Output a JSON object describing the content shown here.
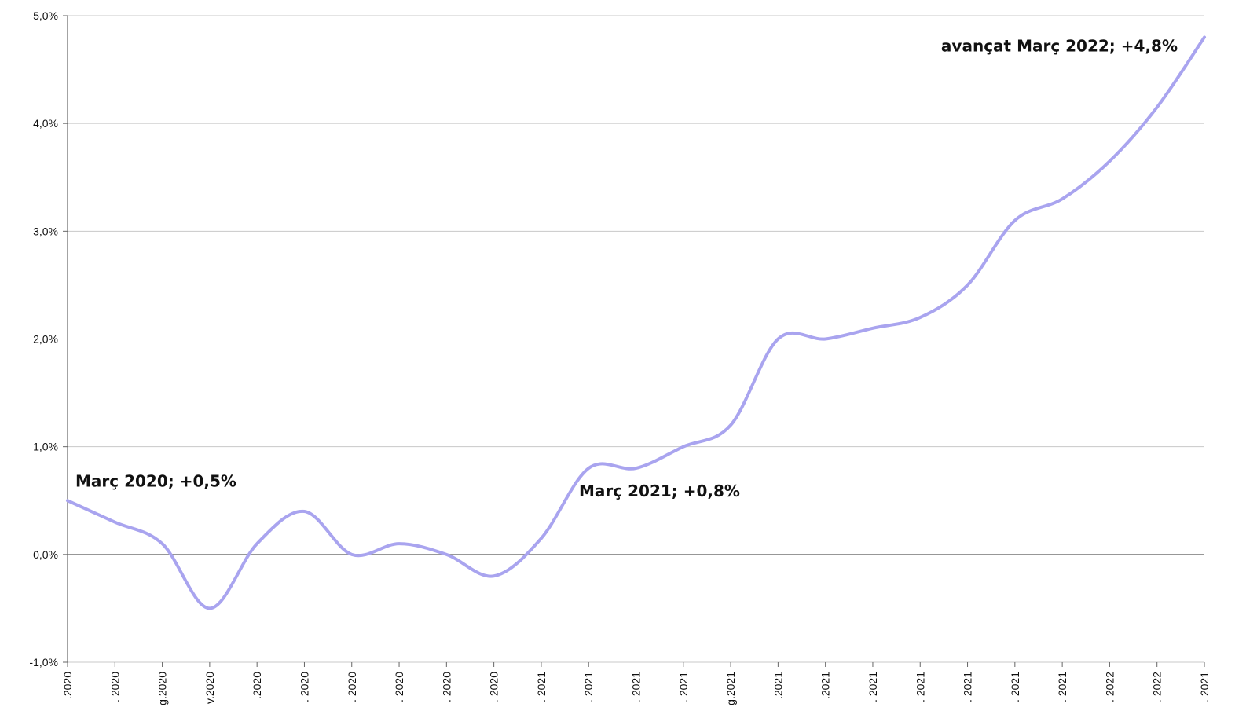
{
  "chart_data": {
    "type": "line",
    "title": "",
    "xlabel": "",
    "ylabel": "",
    "ylim": [
      -1.0,
      5.0
    ],
    "y_ticks": [
      "-1,0%",
      "0,0%",
      "1,0%",
      "2,0%",
      "3,0%",
      "4,0%",
      "5,0%"
    ],
    "y_tick_values": [
      -1,
      0,
      1,
      2,
      3,
      4,
      5
    ],
    "categories": [
      "2020",
      "2020",
      "2020",
      "2020",
      "2020",
      "2020",
      "2020",
      "2020",
      "2020",
      "2020",
      "2021",
      "2021",
      "2021",
      "2021",
      "2021",
      "2021",
      "2021",
      "2021",
      "2021",
      "2021",
      "2021",
      "2021",
      "2022",
      "2022",
      "2021"
    ],
    "tick_labels": [
      ".2020",
      ". 2020",
      "g.2020",
      "v.2020",
      ".2020",
      ". 2020",
      ". 2020",
      ". 2020",
      ". 2020",
      ". 2020",
      ". 2021",
      ". 2021",
      ". 2021",
      ". 2021",
      "g.2021",
      ".2021",
      ".2021",
      ". 2021",
      ". 2021",
      ". 2021",
      ". 2021",
      ". 2021",
      ". 2022",
      ". 2022",
      ". 2021"
    ],
    "series": [
      {
        "color": "#a9a4ef",
        "values": [
          0.5,
          0.3,
          0.1,
          -0.5,
          0.1,
          0.4,
          0.0,
          0.1,
          0.0,
          -0.2,
          0.15,
          0.8,
          0.8,
          1.0,
          1.2,
          2.0,
          2.0,
          2.1,
          2.2,
          2.5,
          3.1,
          3.3,
          3.65,
          4.15,
          4.8
        ]
      }
    ],
    "annotations": [
      {
        "text": "Març 2020; +0,5%",
        "index": 0,
        "value": 0.5
      },
      {
        "text": "Març 2021;  +0,8%",
        "index": 12,
        "value": 0.8
      },
      {
        "text": "avançat Març 2022; +4,8%",
        "index": 24,
        "value": 4.8
      }
    ],
    "grid": true,
    "colors": {
      "line": "#a9a4ef",
      "grid": "#c8c8c8",
      "zero_line": "#888888",
      "axis": "#666666"
    }
  }
}
